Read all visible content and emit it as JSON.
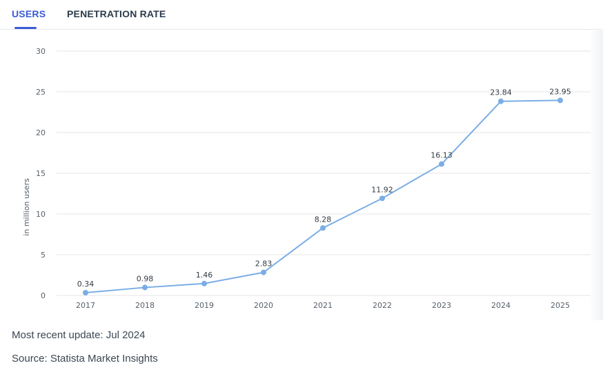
{
  "tabs": [
    {
      "label": "USERS",
      "active": true
    },
    {
      "label": "PENETRATION RATE",
      "active": false
    }
  ],
  "colors": {
    "accent": "#3b5bd6",
    "line": "#7aade6",
    "grid": "#e4e6ea",
    "tick": "#555f6a"
  },
  "chart_data": {
    "type": "line",
    "title": "",
    "xlabel": "",
    "ylabel": "in million users",
    "ylim": [
      0,
      30
    ],
    "yticks": [
      0,
      5,
      10,
      15,
      20,
      25,
      30
    ],
    "categories": [
      "2017",
      "2018",
      "2019",
      "2020",
      "2021",
      "2022",
      "2023",
      "2024",
      "2025"
    ],
    "series": [
      {
        "name": "Users",
        "values": [
          0.34,
          0.98,
          1.46,
          2.83,
          8.28,
          11.92,
          16.13,
          23.84,
          23.95
        ]
      }
    ],
    "data_labels": [
      "0.34",
      "0.98",
      "1.46",
      "2.83",
      "8.28",
      "11.92",
      "16.13",
      "23.84",
      "23.95"
    ],
    "grid": true,
    "legend": "none"
  },
  "footer": {
    "update": "Most recent update: Jul 2024",
    "source": "Source: Statista Market Insights"
  }
}
